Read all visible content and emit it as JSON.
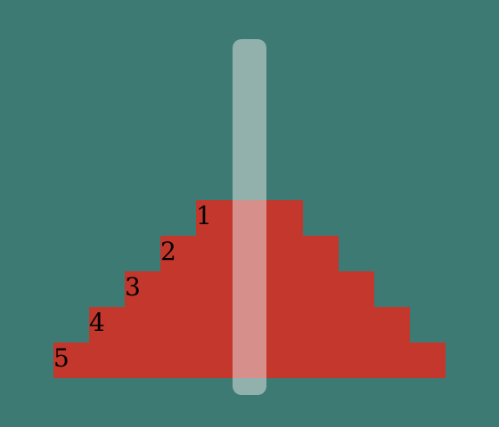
{
  "game": {
    "colors": {
      "background": "#3d7a73",
      "disc": "#c4372c",
      "peg": "#e8e8e8"
    },
    "discs": [
      {
        "size": 1,
        "label": "1"
      },
      {
        "size": 2,
        "label": "2"
      },
      {
        "size": 3,
        "label": "3"
      },
      {
        "size": 4,
        "label": "4"
      },
      {
        "size": 5,
        "label": "5"
      }
    ]
  }
}
